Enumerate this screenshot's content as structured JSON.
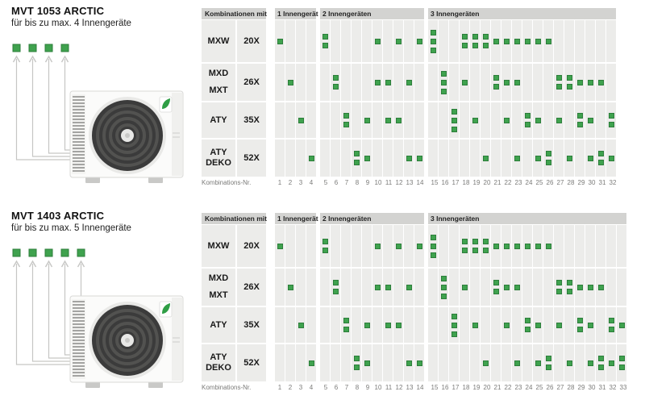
{
  "colors": {
    "marker_green": "#3fa24e",
    "marker_green_border": "#2d7e3b",
    "cell_gray": "#ececea",
    "header_gray": "#d3d3d1",
    "number_gray": "#7b7b79",
    "arrow_gray": "#c6c6c4"
  },
  "products": [
    {
      "title": "MVT 1053 ARCTIC",
      "subtitle": "für bis zu max. 4 Innengeräte",
      "max_indoor_units": 4,
      "table": {
        "corner_header": "Kombinationen mit",
        "footer_label": "Kombinations-Nr.",
        "groups": [
          {
            "header": "1 Innengerät",
            "from": 1,
            "to": 4
          },
          {
            "header": "2 Innengeräten",
            "from": 5,
            "to": 14
          },
          {
            "header": "3 Innengeräten",
            "from": 15,
            "to": 32
          }
        ],
        "rows": [
          {
            "series": [
              "MXW"
            ],
            "size": "20X",
            "marks": {
              "1": 1,
              "5": 2,
              "10": 1,
              "12": 1,
              "14": 1,
              "15": 3,
              "18": 2,
              "19": 2,
              "20": 2,
              "21": 1,
              "22": 1,
              "23": 1,
              "24": 1,
              "25": 1,
              "26": 1
            }
          },
          {
            "series": [
              "MXD",
              "MXT"
            ],
            "size": "26X",
            "marks": {
              "2": 1,
              "6": 2,
              "10": 1,
              "11": 1,
              "13": 1,
              "16": 3,
              "18": 1,
              "21": 2,
              "22": 1,
              "23": 1,
              "27": 2,
              "28": 2,
              "29": 1,
              "30": 1,
              "31": 1
            }
          },
          {
            "series": [
              "ATY"
            ],
            "size": "35X",
            "marks": {
              "3": 1,
              "7": 2,
              "9": 1,
              "11": 1,
              "12": 1,
              "17": 3,
              "19": 1,
              "22": 1,
              "24": 2,
              "25": 1,
              "27": 1,
              "29": 2,
              "30": 1,
              "32": 2
            }
          },
          {
            "series": [
              "ATY DEKO"
            ],
            "size": "52X",
            "marks": {
              "4": 1,
              "8": 2,
              "9": 1,
              "13": 1,
              "14": 1,
              "20": 1,
              "23": 1,
              "25": 1,
              "26": 2,
              "28": 1,
              "30": 1,
              "31": 2,
              "32": 1
            }
          }
        ]
      }
    },
    {
      "title": "MVT 1403 ARCTIC",
      "subtitle": "für bis zu max. 5 Innengeräte",
      "max_indoor_units": 5,
      "table": {
        "corner_header": "Kombinationen mit",
        "footer_label": "Kombinations-Nr.",
        "groups": [
          {
            "header": "1 Innengerät",
            "from": 1,
            "to": 4
          },
          {
            "header": "2 Innengeräten",
            "from": 5,
            "to": 14
          },
          {
            "header": "3 Innengeräten",
            "from": 15,
            "to": 33
          }
        ],
        "rows": [
          {
            "series": [
              "MXW"
            ],
            "size": "20X",
            "marks": {
              "1": 1,
              "5": 2,
              "10": 1,
              "12": 1,
              "14": 1,
              "15": 3,
              "18": 2,
              "19": 2,
              "20": 2,
              "21": 1,
              "22": 1,
              "23": 1,
              "24": 1,
              "25": 1,
              "26": 1
            }
          },
          {
            "series": [
              "MXD",
              "MXT"
            ],
            "size": "26X",
            "marks": {
              "2": 1,
              "6": 2,
              "10": 1,
              "11": 1,
              "13": 1,
              "16": 3,
              "18": 1,
              "21": 2,
              "22": 1,
              "23": 1,
              "27": 2,
              "28": 2,
              "29": 1,
              "30": 1,
              "31": 1
            }
          },
          {
            "series": [
              "ATY"
            ],
            "size": "35X",
            "marks": {
              "3": 1,
              "7": 2,
              "9": 1,
              "11": 1,
              "12": 1,
              "17": 3,
              "19": 1,
              "22": 1,
              "24": 2,
              "25": 1,
              "27": 1,
              "29": 2,
              "30": 1,
              "32": 2,
              "33": 1
            }
          },
          {
            "series": [
              "ATY DEKO"
            ],
            "size": "52X",
            "marks": {
              "4": 1,
              "8": 2,
              "9": 1,
              "13": 1,
              "14": 1,
              "20": 1,
              "23": 1,
              "25": 1,
              "26": 2,
              "28": 1,
              "30": 1,
              "31": 2,
              "32": 1,
              "33": 2
            }
          }
        ]
      }
    }
  ]
}
